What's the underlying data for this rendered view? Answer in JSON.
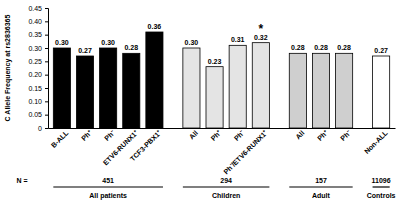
{
  "chart_data": {
    "type": "bar",
    "ylabel": "C Allele Frequency at rs2836365",
    "categories": [
      "B-ALL",
      "Ph⁺",
      "Ph⁻",
      "ETV6-RUNX1⁺",
      "TCF3-PBX1⁺",
      "All",
      "Ph⁺",
      "Ph⁻",
      "Ph⁻/ETV6-RUNX1⁺",
      "All",
      "Ph⁺",
      "Ph⁻",
      "Non-ALL"
    ],
    "values": [
      0.3,
      0.27,
      0.3,
      0.28,
      0.36,
      0.3,
      0.23,
      0.31,
      0.32,
      0.28,
      0.28,
      0.28,
      0.27
    ],
    "value_labels": [
      "0.30",
      "0.27",
      "0.30",
      "0.28",
      "0.36",
      "0.30",
      "0.23",
      "0.31",
      "0.32",
      "0.28",
      "0.28",
      "0.28",
      "0.27"
    ],
    "data_labels": true,
    "colors": [
      "#000000",
      "#000000",
      "#000000",
      "#000000",
      "#000000",
      "#e4e4e4",
      "#e4e4e4",
      "#e4e4e4",
      "#e4e4e4",
      "#cfcfcf",
      "#cfcfcf",
      "#cfcfcf",
      "#ffffff"
    ],
    "ylim": [
      0,
      0.45
    ],
    "yticks": [
      0,
      0.05,
      {
        "value": 0.1,
        "label": "0.10"
      },
      0.15,
      {
        "value": 0.2,
        "label": "0.20"
      },
      0.25,
      {
        "value": 0.3,
        "label": "0.30"
      },
      0.35,
      {
        "value": 0.4,
        "label": "0.40"
      },
      0.45
    ],
    "grid": false,
    "annotations": [
      {
        "text": "*",
        "category": 8
      }
    ],
    "n_label": "N =",
    "groups": [
      {
        "label": "All patients",
        "n": 451,
        "members": [
          0,
          1,
          2,
          3,
          4
        ]
      },
      {
        "label": "Children",
        "n": 294,
        "members": [
          5,
          6,
          7,
          8
        ]
      },
      {
        "label": "Adult",
        "n": 157,
        "members": [
          9,
          10,
          11
        ]
      },
      {
        "label": "Controls",
        "n": 11096,
        "members": [
          12
        ]
      }
    ]
  }
}
